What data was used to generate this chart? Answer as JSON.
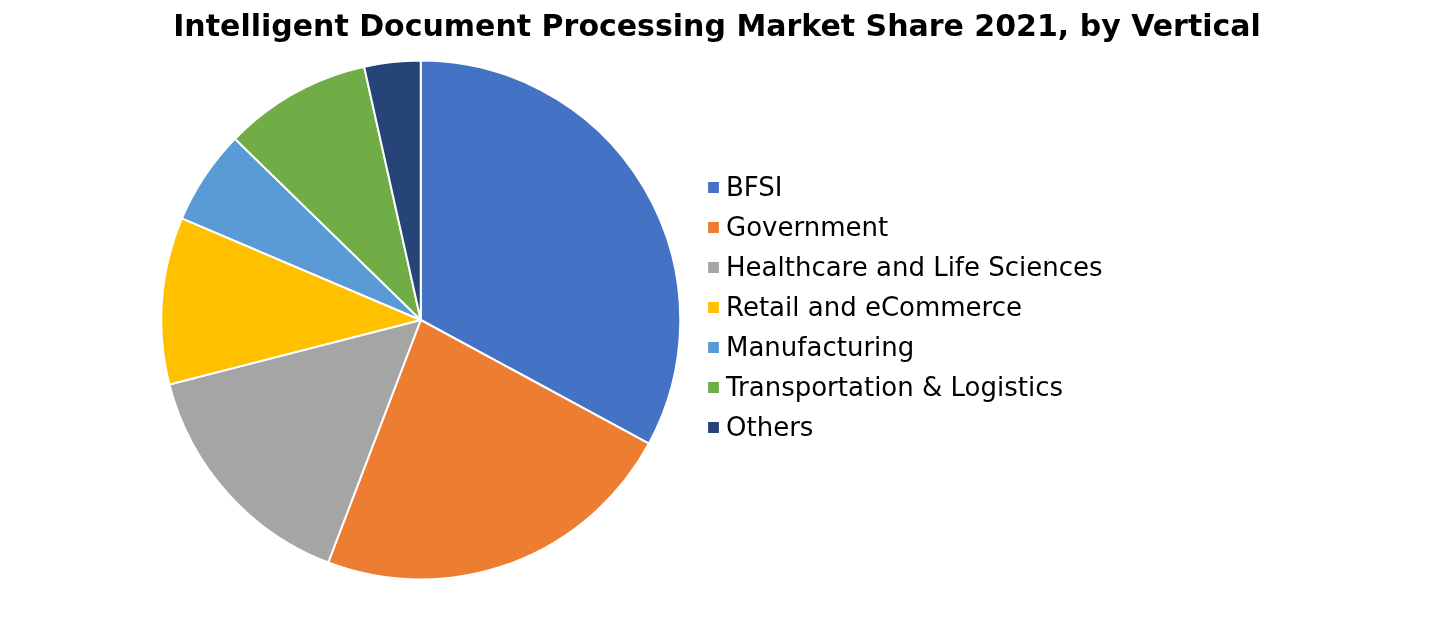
{
  "chart_data": {
    "type": "pie",
    "title": "Intelligent Document Processing Market Share 2021, by Vertical",
    "categories": [
      "BFSI",
      "Government",
      "Healthcare and Life Sciences",
      "Retail and eCommerce",
      "Manufacturing",
      "Transportation & Logistics",
      "Others"
    ],
    "values": [
      32.9,
      22.9,
      15.2,
      10.4,
      5.9,
      9.2,
      3.5
    ],
    "colors": [
      "#4472c4",
      "#ed7d31",
      "#a5a5a5",
      "#ffc000",
      "#5b9bd5",
      "#70ad47",
      "#264478"
    ],
    "legend": "right"
  }
}
